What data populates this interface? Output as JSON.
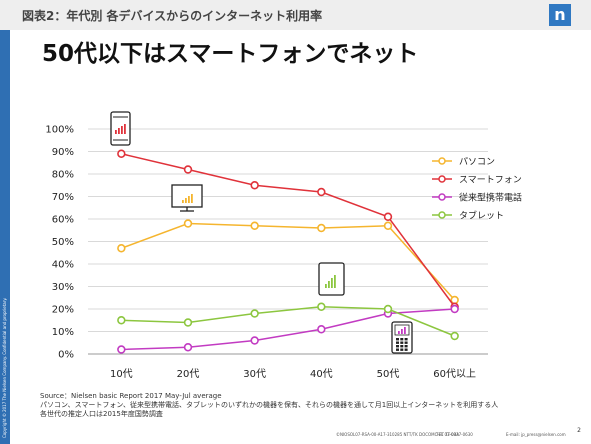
{
  "header": {
    "title": "図表2：年代別 各デバイスからのインターネット利用率",
    "logo_letter": "n"
  },
  "main_title": "50代以下はスマートフォンでネット",
  "side_text": "Copyright © 2017 The Nielsen Company. Confidential and proprietary.",
  "chart_data": {
    "type": "line",
    "title": "",
    "xlabel": "",
    "ylabel": "",
    "categories": [
      "10代",
      "20代",
      "30代",
      "40代",
      "50代",
      "60代以上"
    ],
    "ylim": [
      0,
      100
    ],
    "yticks": [
      "0%",
      "10%",
      "20%",
      "30%",
      "40%",
      "50%",
      "60%",
      "70%",
      "80%",
      "90%",
      "100%"
    ],
    "grid": true,
    "legend_position": "right",
    "series": [
      {
        "name": "パソコン",
        "color": "#f5b52e",
        "values": [
          47,
          58,
          57,
          56,
          57,
          24
        ]
      },
      {
        "name": "スマートフォン",
        "color": "#e0323a",
        "values": [
          89,
          82,
          75,
          72,
          61,
          21
        ]
      },
      {
        "name": "従来型携帯電話",
        "color": "#c23bc2",
        "values": [
          2,
          3,
          6,
          11,
          18,
          20
        ]
      },
      {
        "name": "タブレット",
        "color": "#8cc63f",
        "values": [
          15,
          14,
          18,
          21,
          20,
          8
        ]
      }
    ],
    "device_icons": [
      "smartphone-icon",
      "pc-monitor-icon",
      "tablet-icon",
      "feature-phone-icon"
    ]
  },
  "source": {
    "line1": "Source：Nielsen basic Report 2017 May-Jul average",
    "line2": "パソコン、スマートフォン、従来型携帯電話、タブレットのいずれかの機器を保有、それらの機器を通して月1回以上インターネットを利用する人",
    "line3": "各世代の推定人口は2015年度国勢調査"
  },
  "footer": {
    "id": "©NIOSOL07-RSA-00-A17-310285 NTT/TK DOCOMO-FT TT-03A",
    "phone": "TEL 03-0837-0630",
    "mail": "E-mail: jp_press@nielsen.com"
  },
  "page_number": "2"
}
